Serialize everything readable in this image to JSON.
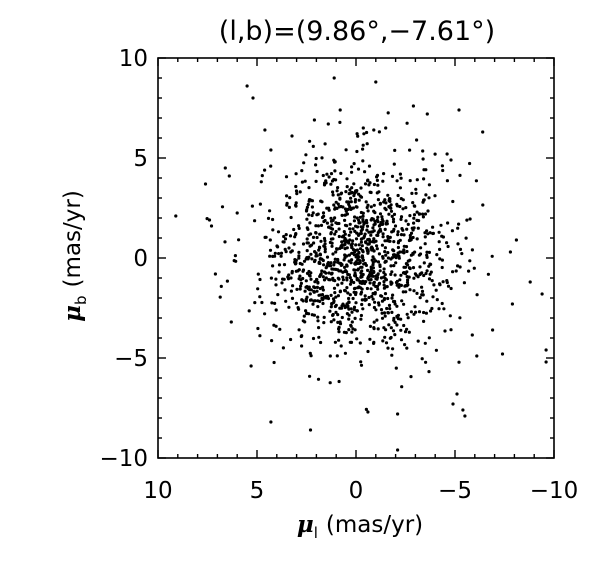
{
  "chart_data": {
    "type": "scatter",
    "title": "(l,b)=(9.86°,−7.61°)",
    "xlabel": {
      "symbol": "μ",
      "subscript": "l",
      "unit": "(mas/yr)"
    },
    "ylabel": {
      "symbol": "μ",
      "subscript": "b",
      "unit": "(mas/yr)"
    },
    "xlim": [
      10,
      -10
    ],
    "ylim": [
      -10,
      10
    ],
    "x_reversed": true,
    "x_ticks": [
      10,
      5,
      0,
      -5,
      -10
    ],
    "x_tick_labels": [
      "10",
      "5",
      "0",
      "−5",
      "−10"
    ],
    "y_ticks": [
      10,
      5,
      0,
      -5,
      -10
    ],
    "y_tick_labels": [
      "10",
      "5",
      "0",
      "−5",
      "−10"
    ],
    "grid": false,
    "marker_color": "#000000",
    "series": [
      {
        "points_listed": [
          [
            9.1,
            2.1
          ],
          [
            7.4,
            1.9
          ],
          [
            7.3,
            1.6
          ],
          [
            7.6,
            3.7
          ],
          [
            7.1,
            -0.8
          ],
          [
            6.6,
            4.5
          ],
          [
            6.4,
            4.1
          ],
          [
            6.3,
            -3.2
          ],
          [
            5.5,
            8.6
          ],
          [
            5.2,
            8.0
          ],
          [
            5.3,
            -5.4
          ],
          [
            4.6,
            6.4
          ],
          [
            4.3,
            -8.2
          ],
          [
            4.3,
            5.4
          ],
          [
            2.3,
            -8.6
          ],
          [
            2.1,
            6.9
          ],
          [
            1.4,
            6.7
          ],
          [
            1.1,
            9.0
          ],
          [
            0.8,
            7.4
          ],
          [
            -0.6,
            -7.7
          ],
          [
            -0.9,
            6.4
          ],
          [
            -1.0,
            8.8
          ],
          [
            -1.5,
            6.5
          ],
          [
            -2.1,
            -9.6
          ],
          [
            -2.1,
            -7.8
          ],
          [
            -2.9,
            7.6
          ],
          [
            -3.6,
            7.2
          ],
          [
            -4.6,
            5.2
          ],
          [
            -4.8,
            4.9
          ],
          [
            -4.9,
            -7.3
          ],
          [
            -5.2,
            7.4
          ],
          [
            -5.4,
            -7.6
          ],
          [
            -5.5,
            -7.9
          ],
          [
            -5.1,
            -6.8
          ],
          [
            -6.1,
            -4.9
          ],
          [
            -6.4,
            6.3
          ],
          [
            -6.9,
            -3.6
          ],
          [
            -7.4,
            -4.8
          ],
          [
            -7.8,
            0.3
          ],
          [
            -7.9,
            -2.3
          ],
          [
            -8.1,
            0.9
          ],
          [
            -8.8,
            -1.2
          ],
          [
            -9.4,
            -1.8
          ],
          [
            -9.6,
            -4.6
          ],
          [
            -9.6,
            -5.2
          ]
        ],
        "generated": {
          "seed": 20240611,
          "count": 1300,
          "center": [
            -0.05,
            0.15
          ],
          "sigma": [
            2.35,
            2.35
          ],
          "clip": 9.7
        }
      }
    ]
  }
}
